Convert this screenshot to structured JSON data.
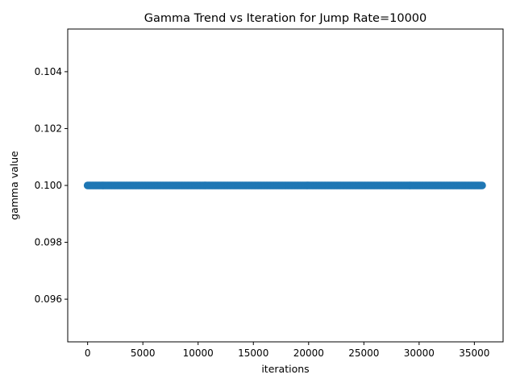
{
  "chart_data": {
    "type": "scatter",
    "title": "Gamma Trend vs Iteration for Jump Rate=10000",
    "xlabel": "iterations",
    "ylabel": "gamma value",
    "xlim": [
      -1800,
      37600
    ],
    "ylim": [
      0.0945,
      0.1055
    ],
    "xticks": [
      0,
      5000,
      10000,
      15000,
      20000,
      25000,
      30000,
      35000
    ],
    "xtick_labels": [
      "0",
      "5000",
      "10000",
      "15000",
      "20000",
      "25000",
      "30000",
      "35000"
    ],
    "yticks": [
      0.096,
      0.098,
      0.1,
      0.102,
      0.104
    ],
    "ytick_labels": [
      "0.096",
      "0.098",
      "0.100",
      "0.102",
      "0.104"
    ],
    "grid": false,
    "legend": "none",
    "series": [
      {
        "color": "#1f77b4",
        "x_start": 0,
        "x_end": 35700,
        "y": 0.1
      }
    ]
  }
}
